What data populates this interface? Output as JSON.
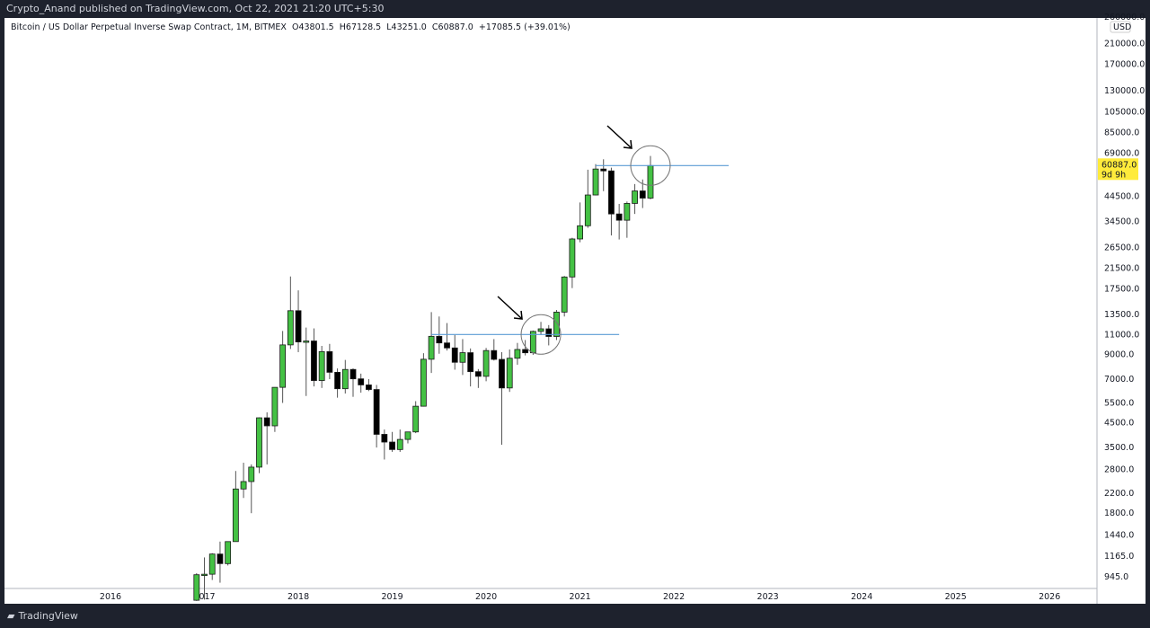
{
  "header": {
    "published": "Crypto_Anand published on TradingView.com, Oct 22, 2021 21:20 UTC+5:30"
  },
  "legend": {
    "symbol": "Bitcoin / US Dollar Perpetual Inverse Swap Contract, 1M, BITMEX",
    "open": "O43801.5",
    "high": "H67128.5",
    "low": "L43251.0",
    "close": "C60887.0",
    "change": "+17085.5 (+39.01%)"
  },
  "footer": {
    "brand": "TradingView"
  },
  "colors": {
    "up": "#44c144",
    "down": "#000000",
    "line": "#5b9bd5",
    "price_label": "#ffeb3b"
  },
  "chart_data": {
    "type": "candlestick",
    "interval": "1M",
    "scale": "log",
    "currency": "USD",
    "grid": false,
    "price_label": {
      "value": "60887.0",
      "countdown": "9d 9h"
    },
    "y_ticks": [
      "260000.0",
      "210000.0",
      "170000.0",
      "130000.0",
      "105000.0",
      "85000.0",
      "69000.0",
      "44500.0",
      "34500.0",
      "26500.0",
      "21500.0",
      "17500.0",
      "13500.0",
      "11000.0",
      "9000.0",
      "7000.0",
      "5500.0",
      "4500.0",
      "3500.0",
      "2800.0",
      "2200.0",
      "1800.0",
      "1440.0",
      "1165.0",
      "945.0"
    ],
    "x_ticks": [
      "2016",
      "2017",
      "2018",
      "2019",
      "2020",
      "2021",
      "2022",
      "2023",
      "2024",
      "2025",
      "2026"
    ],
    "start": "2016-12",
    "ohlc": [
      [
        745,
        980,
        740,
        965
      ],
      [
        965,
        1150,
        750,
        970
      ],
      [
        970,
        1200,
        915,
        1190
      ],
      [
        1190,
        1350,
        890,
        1080
      ],
      [
        1080,
        1350,
        1060,
        1350
      ],
      [
        1350,
        2760,
        1350,
        2300
      ],
      [
        2300,
        3000,
        2100,
        2480
      ],
      [
        2480,
        2950,
        1800,
        2870
      ],
      [
        2870,
        4750,
        2700,
        4730
      ],
      [
        4730,
        5000,
        2950,
        4360
      ],
      [
        4360,
        6450,
        4100,
        6440
      ],
      [
        6440,
        11400,
        5500,
        9900
      ],
      [
        9900,
        19800,
        9500,
        14000
      ],
      [
        14000,
        17200,
        9200,
        10200
      ],
      [
        10200,
        11800,
        5900,
        10300
      ],
      [
        10300,
        11700,
        6500,
        6900
      ],
      [
        6900,
        9800,
        6400,
        9250
      ],
      [
        9250,
        10000,
        7000,
        7500
      ],
      [
        7500,
        7800,
        5800,
        6350
      ],
      [
        6350,
        8500,
        6050,
        7720
      ],
      [
        7720,
        7800,
        5850,
        7020
      ],
      [
        7020,
        7400,
        6100,
        6600
      ],
      [
        6600,
        7000,
        6200,
        6300
      ],
      [
        6300,
        6600,
        3500,
        4000
      ],
      [
        4000,
        4200,
        3100,
        3700
      ],
      [
        3700,
        4100,
        3350,
        3430
      ],
      [
        3430,
        4200,
        3350,
        3800
      ],
      [
        3800,
        4100,
        3650,
        4100
      ],
      [
        4100,
        5600,
        4050,
        5320
      ],
      [
        5320,
        9100,
        5300,
        8560
      ],
      [
        8560,
        13800,
        7450,
        10800
      ],
      [
        10800,
        13200,
        9050,
        10100
      ],
      [
        10100,
        12350,
        9350,
        9600
      ],
      [
        9600,
        10950,
        7700,
        8300
      ],
      [
        8300,
        10500,
        7300,
        9150
      ],
      [
        9150,
        9550,
        6500,
        7550
      ],
      [
        7550,
        7750,
        6400,
        7200
      ],
      [
        7200,
        9600,
        6850,
        9350
      ],
      [
        9350,
        10500,
        8450,
        8550
      ],
      [
        8550,
        9200,
        3600,
        6400
      ],
      [
        6400,
        9450,
        6150,
        8650
      ],
      [
        8650,
        10100,
        8100,
        9450
      ],
      [
        9450,
        10400,
        8900,
        9140
      ],
      [
        9140,
        11450,
        8950,
        11350
      ],
      [
        11350,
        12500,
        10950,
        11650
      ],
      [
        11650,
        12100,
        9850,
        10780
      ],
      [
        10780,
        14100,
        10400,
        13800
      ],
      [
        13800,
        19900,
        13200,
        19700
      ],
      [
        19700,
        29300,
        17600,
        28950
      ],
      [
        28950,
        41900,
        28000,
        33100
      ],
      [
        33100,
        58400,
        32400,
        45200
      ],
      [
        45200,
        61800,
        45000,
        58800
      ],
      [
        58800,
        64900,
        47000,
        57700
      ],
      [
        57700,
        59600,
        30000,
        37300
      ],
      [
        37300,
        41300,
        28800,
        35000
      ],
      [
        35000,
        42300,
        29300,
        41500
      ],
      [
        41500,
        50500,
        37300,
        47100
      ],
      [
        47100,
        52900,
        39600,
        43801.5
      ],
      [
        43801.5,
        67128.5,
        43251,
        60887
      ]
    ],
    "drawings": {
      "horizontal_lines": [
        {
          "price": 11000,
          "from": "2019-06",
          "to": "2021-06"
        },
        {
          "price": 60887,
          "from": "2021-03",
          "to": "2022-08"
        }
      ],
      "circles": [
        {
          "center": "2020-08",
          "price": 11000
        },
        {
          "center": "2021-10",
          "price": 60887
        }
      ],
      "arrows": [
        {
          "pointing_to": "2020-08"
        },
        {
          "pointing_to": "2021-10"
        }
      ]
    }
  }
}
